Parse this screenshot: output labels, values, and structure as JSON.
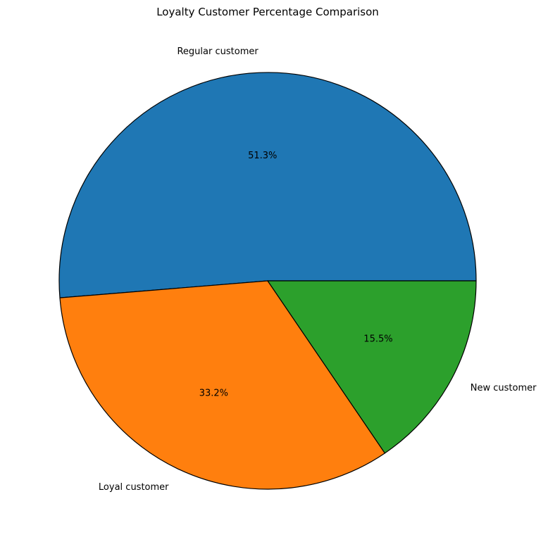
{
  "chart_data": {
    "type": "pie",
    "title": "Loyalty Customer Percentage Comparison",
    "labels": [
      "Regular customer",
      "Loyal customer",
      "New customer"
    ],
    "values": [
      51.3,
      33.2,
      15.5
    ],
    "percent_labels": [
      "51.3%",
      "33.2%",
      "15.5%"
    ],
    "colors": [
      "#1f77b4",
      "#ff7f0e",
      "#2ca02c"
    ],
    "edge_color": "#000000",
    "start_angle_deg": 0,
    "direction": "counterclockwise"
  }
}
